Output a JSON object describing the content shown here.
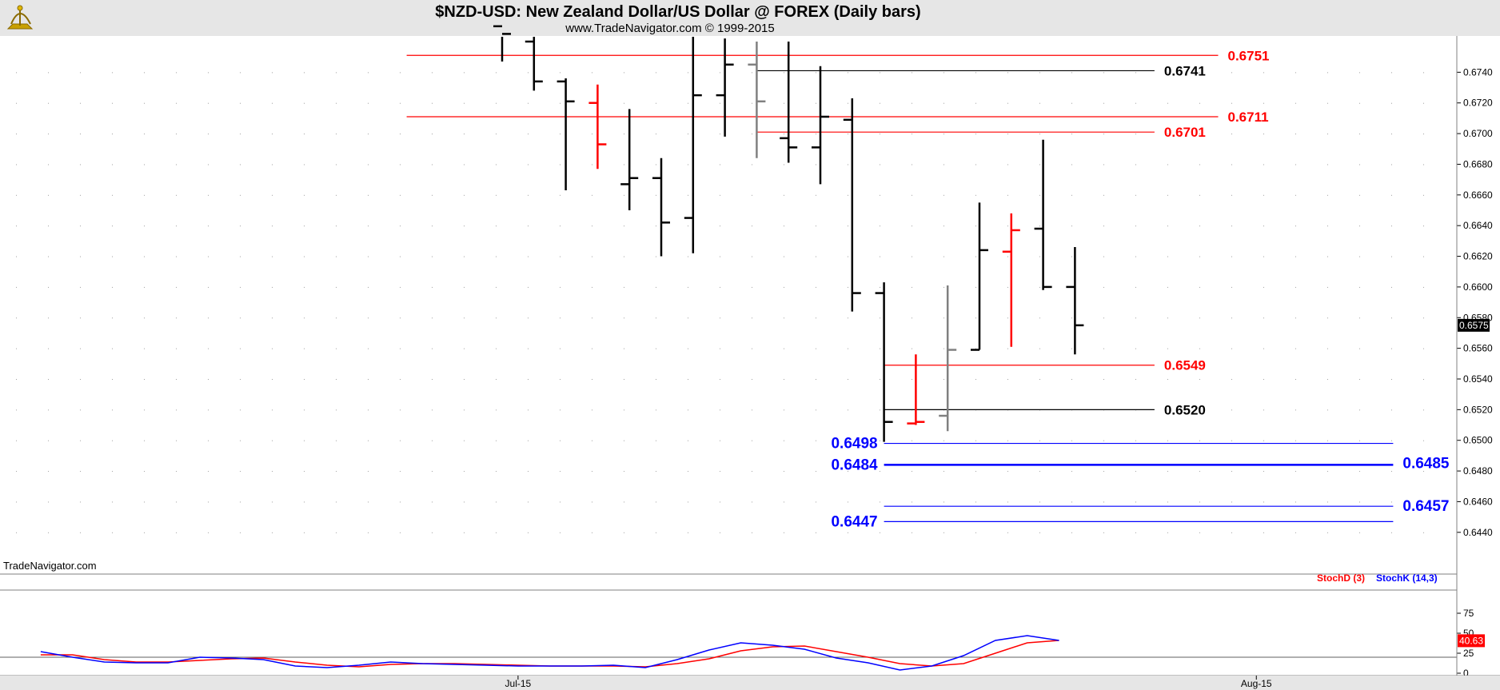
{
  "chart_data": {
    "type": "ohlc",
    "title": "$NZD-USD:  New Zealand Dollar/US Dollar @ FOREX  (Daily bars)",
    "subtitle": "www.TradeNavigator.com © 1999-2015",
    "watermark": "TradeNavigator.com",
    "y_ticks": [
      "0.6740",
      "0.6720",
      "0.6700",
      "0.6680",
      "0.6660",
      "0.6640",
      "0.6620",
      "0.6600",
      "0.6580",
      "0.6560",
      "0.6540",
      "0.6520",
      "0.6500",
      "0.6480",
      "0.6460",
      "0.6440"
    ],
    "ylim": [
      0.6418,
      0.676
    ],
    "x_ticks": [
      {
        "label": "Jul-15",
        "bar": 0.5
      },
      {
        "label": "Aug-15",
        "bar": 23.7
      }
    ],
    "last_price": "0.6575",
    "colors": {
      "up": "#000000",
      "down": "#ff0000",
      "neutral": "#808080",
      "level_red": "#ff0000",
      "level_black": "#000000",
      "level_blue": "#0000ff"
    },
    "bars": [
      {
        "high": 0.679,
        "low": 0.6747,
        "open": 0.677,
        "close": 0.6765,
        "color": "#000000"
      },
      {
        "high": 0.6765,
        "low": 0.6728,
        "open": 0.676,
        "close": 0.6734,
        "color": "#000000"
      },
      {
        "high": 0.6736,
        "low": 0.6663,
        "open": 0.6734,
        "close": 0.6721,
        "color": "#000000"
      },
      {
        "high": 0.6732,
        "low": 0.6677,
        "open": 0.672,
        "close": 0.6693,
        "color": "#ff0000"
      },
      {
        "high": 0.6716,
        "low": 0.665,
        "open": 0.6667,
        "close": 0.6671,
        "color": "#000000"
      },
      {
        "high": 0.6684,
        "low": 0.662,
        "open": 0.6671,
        "close": 0.6642,
        "color": "#000000"
      },
      {
        "high": 0.6785,
        "low": 0.6622,
        "open": 0.6645,
        "close": 0.6725,
        "color": "#000000"
      },
      {
        "high": 0.6762,
        "low": 0.6698,
        "open": 0.6725,
        "close": 0.6745,
        "color": "#000000"
      },
      {
        "high": 0.676,
        "low": 0.6684,
        "open": 0.6745,
        "close": 0.6721,
        "color": "#808080"
      },
      {
        "high": 0.676,
        "low": 0.6681,
        "open": 0.6697,
        "close": 0.6691,
        "color": "#000000"
      },
      {
        "high": 0.6744,
        "low": 0.6667,
        "open": 0.6691,
        "close": 0.6711,
        "color": "#000000"
      },
      {
        "high": 0.6723,
        "low": 0.6584,
        "open": 0.6709,
        "close": 0.6596,
        "color": "#000000"
      },
      {
        "high": 0.6603,
        "low": 0.6499,
        "open": 0.6596,
        "close": 0.6512,
        "color": "#000000"
      },
      {
        "high": 0.6556,
        "low": 0.651,
        "open": 0.6511,
        "close": 0.6512,
        "color": "#ff0000"
      },
      {
        "high": 0.6601,
        "low": 0.6506,
        "open": 0.6516,
        "close": 0.6559,
        "color": "#808080"
      },
      {
        "high": 0.6655,
        "low": 0.6559,
        "open": 0.6559,
        "close": 0.6624,
        "color": "#000000"
      },
      {
        "high": 0.6648,
        "low": 0.6561,
        "open": 0.6623,
        "close": 0.6637,
        "color": "#ff0000"
      },
      {
        "high": 0.6696,
        "low": 0.6598,
        "open": 0.6638,
        "close": 0.66,
        "color": "#000000"
      },
      {
        "high": 0.6626,
        "low": 0.6556,
        "open": 0.66,
        "close": 0.6575,
        "color": "#000000"
      }
    ],
    "levels": [
      {
        "value": 0.6751,
        "label": "0.6751",
        "color": "#ff0000",
        "from_bar": -3,
        "to_bar": 22.5,
        "label_side": "right",
        "label_style": "lvl"
      },
      {
        "value": 0.6741,
        "label": "0.6741",
        "color": "#000000",
        "from_bar": 8,
        "to_bar": 20.5,
        "label_side": "right",
        "label_style": "lvl"
      },
      {
        "value": 0.6711,
        "label": "0.6711",
        "color": "#ff0000",
        "from_bar": -3,
        "to_bar": 22.5,
        "label_side": "right",
        "label_style": "lvl"
      },
      {
        "value": 0.6701,
        "label": "0.6701",
        "color": "#ff0000",
        "from_bar": 8,
        "to_bar": 20.5,
        "label_side": "right",
        "label_style": "lvl"
      },
      {
        "value": 0.6549,
        "label": "0.6549",
        "color": "#ff0000",
        "from_bar": 12,
        "to_bar": 20.5,
        "label_side": "right",
        "label_style": "lvl"
      },
      {
        "value": 0.652,
        "label": "0.6520",
        "color": "#000000",
        "from_bar": 12,
        "to_bar": 20.5,
        "label_side": "right",
        "label_style": "lvl"
      },
      {
        "value": 0.6498,
        "label": "0.6498",
        "color": "#0000ff",
        "from_bar": 12,
        "to_bar": 28,
        "label_side": "left",
        "label_style": "lvl-blue"
      },
      {
        "value": 0.6484,
        "label": "0.6484",
        "color": "#0000ff",
        "from_bar": 12,
        "to_bar": 28,
        "label_side": "left",
        "label_style": "lvl-blue",
        "thick": true
      },
      {
        "value": 0.6485,
        "label": "0.6485",
        "color": "#0000ff",
        "from_bar": null,
        "to_bar": 28,
        "label_side": "right",
        "label_style": "lvl-blue",
        "label_only": true
      },
      {
        "value": 0.6457,
        "label": "0.6457",
        "color": "#0000ff",
        "from_bar": 12,
        "to_bar": 28,
        "label_side": "right",
        "label_style": "lvl-blue"
      },
      {
        "value": 0.6447,
        "label": "0.6447",
        "color": "#0000ff",
        "from_bar": 12,
        "to_bar": 28,
        "label_side": "left",
        "label_style": "lvl-blue"
      }
    ],
    "oscillator": {
      "y_ticks": [
        "75",
        "50",
        "25",
        "0"
      ],
      "ylim": [
        0,
        100
      ],
      "reference_line": 20,
      "legend": [
        {
          "name": "StochD (3)",
          "color": "#ff0000"
        },
        {
          "name": "StochK (14,3)",
          "color": "#0000ff"
        }
      ],
      "last_value": "40.63",
      "stochK": [
        {
          "bar": -14.5,
          "value": 27
        },
        {
          "bar": -13.5,
          "value": 20
        },
        {
          "bar": -12.5,
          "value": 14
        },
        {
          "bar": -11.5,
          "value": 13
        },
        {
          "bar": -10.5,
          "value": 13
        },
        {
          "bar": -9.5,
          "value": 20
        },
        {
          "bar": -8.5,
          "value": 19
        },
        {
          "bar": -7.5,
          "value": 17
        },
        {
          "bar": -6.5,
          "value": 9
        },
        {
          "bar": -5.5,
          "value": 7
        },
        {
          "bar": -4.5,
          "value": 10
        },
        {
          "bar": -3.5,
          "value": 14
        },
        {
          "bar": -2.5,
          "value": 12
        },
        {
          "bar": -1.5,
          "value": 11
        },
        {
          "bar": -0.5,
          "value": 10
        },
        {
          "bar": 0.5,
          "value": 9
        },
        {
          "bar": 1.5,
          "value": 9
        },
        {
          "bar": 2.5,
          "value": 9
        },
        {
          "bar": 3.5,
          "value": 10
        },
        {
          "bar": 4.5,
          "value": 7
        },
        {
          "bar": 5.5,
          "value": 17
        },
        {
          "bar": 6.5,
          "value": 29
        },
        {
          "bar": 7.5,
          "value": 38
        },
        {
          "bar": 8.5,
          "value": 35
        },
        {
          "bar": 9.5,
          "value": 30
        },
        {
          "bar": 10.5,
          "value": 19
        },
        {
          "bar": 11.5,
          "value": 13
        },
        {
          "bar": 12.5,
          "value": 4
        },
        {
          "bar": 13.5,
          "value": 9
        },
        {
          "bar": 14.5,
          "value": 22
        },
        {
          "bar": 15.5,
          "value": 41
        },
        {
          "bar": 16.5,
          "value": 47
        },
        {
          "bar": 17.5,
          "value": 41
        }
      ],
      "stochD": [
        {
          "bar": -14.5,
          "value": 23
        },
        {
          "bar": -13.5,
          "value": 23
        },
        {
          "bar": -12.5,
          "value": 17
        },
        {
          "bar": -11.5,
          "value": 14
        },
        {
          "bar": -10.5,
          "value": 14
        },
        {
          "bar": -9.5,
          "value": 16
        },
        {
          "bar": -8.5,
          "value": 18
        },
        {
          "bar": -7.5,
          "value": 19
        },
        {
          "bar": -6.5,
          "value": 14
        },
        {
          "bar": -5.5,
          "value": 10
        },
        {
          "bar": -4.5,
          "value": 8
        },
        {
          "bar": -3.5,
          "value": 11
        },
        {
          "bar": -2.5,
          "value": 12
        },
        {
          "bar": -1.5,
          "value": 12
        },
        {
          "bar": -0.5,
          "value": 11
        },
        {
          "bar": 0.5,
          "value": 10
        },
        {
          "bar": 1.5,
          "value": 9
        },
        {
          "bar": 2.5,
          "value": 9
        },
        {
          "bar": 3.5,
          "value": 9
        },
        {
          "bar": 4.5,
          "value": 8
        },
        {
          "bar": 5.5,
          "value": 12
        },
        {
          "bar": 6.5,
          "value": 18
        },
        {
          "bar": 7.5,
          "value": 28
        },
        {
          "bar": 8.5,
          "value": 33
        },
        {
          "bar": 9.5,
          "value": 34
        },
        {
          "bar": 10.5,
          "value": 27
        },
        {
          "bar": 11.5,
          "value": 20
        },
        {
          "bar": 12.5,
          "value": 12
        },
        {
          "bar": 13.5,
          "value": 9
        },
        {
          "bar": 14.5,
          "value": 12
        },
        {
          "bar": 15.5,
          "value": 25
        },
        {
          "bar": 16.5,
          "value": 38
        },
        {
          "bar": 17.5,
          "value": 41
        }
      ]
    }
  }
}
